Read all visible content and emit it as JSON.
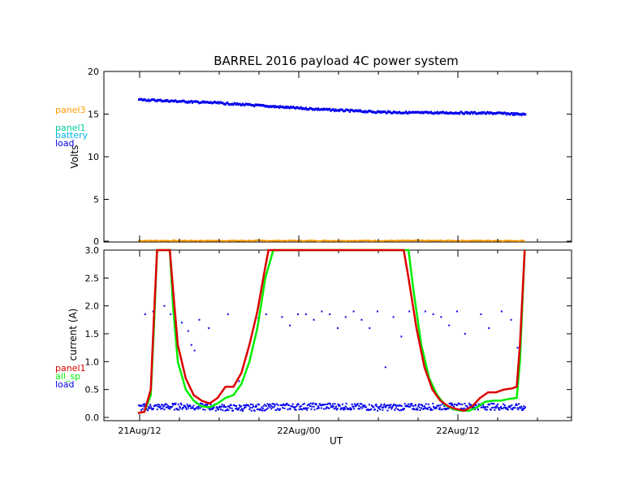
{
  "colors": {
    "panel3": "#ff9900",
    "panel1_top": "#00cc99",
    "battery": "#00bbee",
    "load": "#0000ee",
    "panel1_bottom": "#dd0000",
    "all_sp": "#00ee00",
    "axes": "#000000"
  },
  "chart_data": [
    {
      "type": "scatter",
      "title": "BARREL 2016 payload 4C power system",
      "ylabel": "Volts",
      "ylim": [
        0,
        20
      ],
      "yticks": [
        "0",
        "5",
        "10",
        "15",
        "20"
      ],
      "grid": false,
      "legend": [
        "panel3",
        "panel1",
        "battery",
        "load"
      ],
      "legend_placement": "left-outside",
      "series": [
        {
          "name": "load",
          "x": [
            0.0,
            0.25,
            0.5,
            0.75,
            1.0,
            1.25,
            1.5,
            1.75,
            2.0,
            2.25,
            2.43
          ],
          "y": [
            16.7,
            16.5,
            16.3,
            16.0,
            15.7,
            15.45,
            15.25,
            15.15,
            15.15,
            15.1,
            14.95
          ]
        },
        {
          "name": "panel3",
          "x": [
            0.0,
            0.5,
            1.0,
            1.5,
            2.0,
            2.43
          ],
          "y": [
            0.0,
            0.0,
            0.0,
            0.0,
            0.0,
            0.0
          ]
        }
      ]
    },
    {
      "type": "line",
      "ylabel": "current (A)",
      "xlabel": "UT",
      "ylim": [
        0,
        3.0
      ],
      "yticks": [
        "0.0",
        "0.5",
        "1.0",
        "1.5",
        "2.0",
        "2.5",
        "3.0"
      ],
      "xticks": [
        "21Aug/12",
        "22Aug/00",
        "22Aug/12"
      ],
      "grid": false,
      "legend": [
        "panel1",
        "all_sp",
        "load"
      ],
      "legend_placement": "left-outside",
      "series": [
        {
          "name": "panel1",
          "x": [
            0.0,
            0.04,
            0.08,
            0.1,
            0.12,
            0.2,
            0.22,
            0.25,
            0.3,
            0.35,
            0.4,
            0.45,
            0.5,
            0.55,
            0.6,
            0.65,
            0.7,
            0.75,
            0.8,
            0.82,
            1.67,
            1.7,
            1.75,
            1.8,
            1.85,
            1.9,
            1.95,
            2.0,
            2.05,
            2.1,
            2.15,
            2.2,
            2.25,
            2.3,
            2.35,
            2.38,
            2.4,
            2.43
          ],
          "y": [
            0.08,
            0.1,
            0.5,
            1.8,
            3.0,
            3.0,
            2.3,
            1.3,
            0.7,
            0.4,
            0.3,
            0.25,
            0.35,
            0.55,
            0.55,
            0.8,
            1.3,
            1.9,
            2.7,
            3.0,
            3.0,
            2.5,
            1.6,
            0.9,
            0.5,
            0.3,
            0.2,
            0.15,
            0.12,
            0.2,
            0.35,
            0.45,
            0.45,
            0.5,
            0.52,
            0.55,
            1.3,
            3.0
          ]
        },
        {
          "name": "all_sp",
          "x": [
            0.0,
            0.04,
            0.08,
            0.1,
            0.12,
            0.2,
            0.22,
            0.25,
            0.3,
            0.35,
            0.4,
            0.45,
            0.5,
            0.55,
            0.6,
            0.65,
            0.7,
            0.75,
            0.8,
            0.85,
            1.7,
            1.73,
            1.78,
            1.83,
            1.88,
            1.93,
            1.98,
            2.03,
            2.08,
            2.13,
            2.18,
            2.23,
            2.28,
            2.33,
            2.38,
            2.4,
            2.43
          ],
          "y": [
            0.08,
            0.1,
            0.4,
            1.6,
            3.0,
            3.0,
            2.0,
            1.0,
            0.5,
            0.3,
            0.2,
            0.18,
            0.25,
            0.35,
            0.4,
            0.6,
            1.0,
            1.6,
            2.5,
            3.0,
            3.0,
            2.3,
            1.3,
            0.7,
            0.4,
            0.22,
            0.15,
            0.12,
            0.12,
            0.18,
            0.28,
            0.3,
            0.3,
            0.33,
            0.35,
            1.0,
            3.0
          ]
        },
        {
          "name": "load",
          "x": [
            0.0,
            0.3,
            0.6,
            0.9,
            1.2,
            1.5,
            1.8,
            2.1,
            2.43
          ],
          "y": [
            0.18,
            0.2,
            0.17,
            0.19,
            0.2,
            0.18,
            0.19,
            0.2,
            0.18
          ],
          "outliers": [
            [
              0.04,
              1.85
            ],
            [
              0.09,
              1.9
            ],
            [
              0.16,
              2.0
            ],
            [
              0.2,
              1.85
            ],
            [
              0.27,
              1.7
            ],
            [
              0.31,
              1.55
            ],
            [
              0.33,
              1.3
            ],
            [
              0.35,
              1.2
            ],
            [
              0.38,
              1.75
            ],
            [
              0.44,
              1.6
            ],
            [
              0.56,
              1.85
            ],
            [
              0.63,
              0.65
            ],
            [
              0.75,
              1.78
            ],
            [
              0.8,
              1.85
            ],
            [
              0.9,
              1.8
            ],
            [
              0.95,
              1.65
            ],
            [
              1.0,
              1.85
            ],
            [
              1.05,
              1.85
            ],
            [
              1.1,
              1.75
            ],
            [
              1.15,
              1.9
            ],
            [
              1.2,
              1.85
            ],
            [
              1.25,
              1.6
            ],
            [
              1.3,
              1.8
            ],
            [
              1.35,
              1.9
            ],
            [
              1.4,
              1.75
            ],
            [
              1.45,
              1.6
            ],
            [
              1.5,
              1.9
            ],
            [
              1.55,
              0.9
            ],
            [
              1.6,
              1.8
            ],
            [
              1.65,
              1.45
            ],
            [
              1.7,
              1.9
            ],
            [
              1.8,
              1.9
            ],
            [
              1.85,
              1.85
            ],
            [
              1.9,
              1.8
            ],
            [
              1.95,
              1.65
            ],
            [
              2.0,
              1.9
            ],
            [
              2.05,
              1.5
            ],
            [
              2.15,
              1.85
            ],
            [
              2.2,
              1.6
            ],
            [
              2.28,
              1.9
            ],
            [
              2.34,
              1.75
            ],
            [
              2.38,
              1.25
            ],
            [
              2.41,
              2.0
            ]
          ]
        }
      ]
    }
  ]
}
